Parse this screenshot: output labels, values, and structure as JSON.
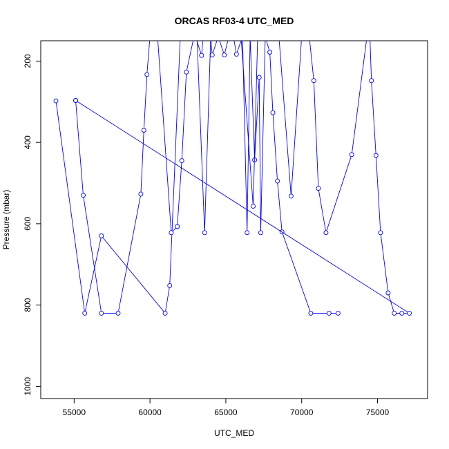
{
  "chart_data": {
    "type": "line",
    "title": "ORCAS RF03-4 UTC_MED",
    "xlabel": "UTC_MED",
    "ylabel": "Pressure (mbar)",
    "xlim": [
      52800,
      78300
    ],
    "ylim": [
      150,
      1030
    ],
    "y_reversed": true,
    "x_ticks": [
      55000,
      60000,
      65000,
      70000,
      75000
    ],
    "y_ticks": [
      200,
      400,
      600,
      800,
      1000
    ],
    "grid": false,
    "legend": "none",
    "colors": {
      "series": "#0000ff",
      "axis": "#000000",
      "background": "#ffffff"
    },
    "series": [
      {
        "points": [
          [
            53800,
            298
          ],
          [
            55700,
            820
          ],
          [
            56800,
            630
          ],
          [
            61000,
            820
          ],
          [
            61300,
            752
          ],
          [
            62000,
            140
          ],
          [
            63000,
            140
          ],
          [
            63400,
            186
          ],
          [
            63500,
            140
          ],
          [
            64000,
            140
          ],
          [
            64100,
            185
          ],
          [
            64500,
            140
          ],
          [
            64900,
            185
          ],
          [
            65200,
            140
          ],
          [
            65500,
            140
          ],
          [
            65700,
            183
          ],
          [
            66100,
            140
          ],
          [
            66400,
            622
          ],
          [
            66600,
            140
          ],
          [
            66900,
            443
          ],
          [
            67200,
            240
          ],
          [
            67300,
            622
          ],
          [
            67600,
            140
          ],
          [
            67900,
            178
          ],
          [
            68100,
            327
          ],
          [
            68400,
            495
          ],
          [
            68700,
            620
          ],
          [
            70600,
            820
          ],
          [
            71800,
            820
          ],
          [
            72400,
            820
          ]
        ]
      },
      {
        "points": [
          [
            55100,
            297
          ],
          [
            55600,
            530
          ],
          [
            56800,
            820
          ],
          [
            57900,
            820
          ],
          [
            59400,
            527
          ],
          [
            59600,
            370
          ],
          [
            59800,
            233
          ],
          [
            60000,
            140
          ],
          [
            60500,
            140
          ],
          [
            61400,
            622
          ],
          [
            61800,
            607
          ],
          [
            62100,
            445
          ],
          [
            62400,
            227
          ],
          [
            62900,
            140
          ],
          [
            63100,
            140
          ],
          [
            63600,
            622
          ],
          [
            64000,
            140
          ],
          [
            64600,
            140
          ],
          [
            66000,
            140
          ],
          [
            66800,
            557
          ],
          [
            67100,
            140
          ],
          [
            68200,
            140
          ],
          [
            68500,
            140
          ],
          [
            69300,
            532
          ],
          [
            70000,
            140
          ],
          [
            70500,
            140
          ],
          [
            70800,
            248
          ],
          [
            71100,
            513
          ],
          [
            71600,
            622
          ],
          [
            73300,
            430
          ],
          [
            74300,
            140
          ],
          [
            74500,
            140
          ],
          [
            74600,
            248
          ],
          [
            74900,
            432
          ],
          [
            75200,
            622
          ],
          [
            75700,
            770
          ],
          [
            76100,
            820
          ],
          [
            76600,
            820
          ],
          [
            77100,
            820
          ],
          [
            55100,
            297
          ]
        ]
      }
    ]
  }
}
